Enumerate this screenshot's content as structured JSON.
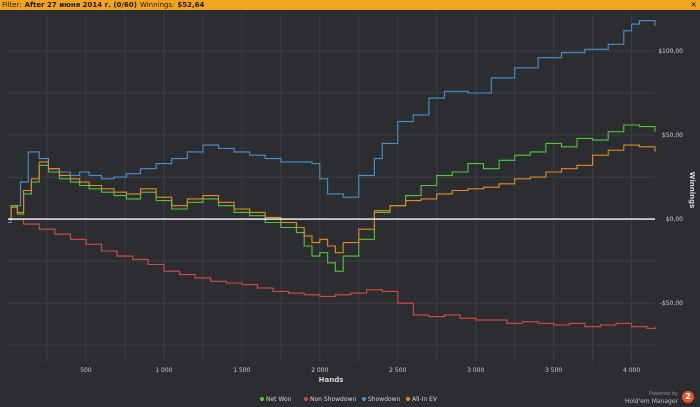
{
  "filter_bar": {
    "filter_label": "Filter:",
    "filter_value": "After 27 июня 2014 г. (0/60)",
    "winnings_label": "Winnings:",
    "winnings_value": "$52,64",
    "close_glyph": "×"
  },
  "brand": {
    "powered_by": "Powered by",
    "name": "Hold'em Manager"
  },
  "chart_data": {
    "type": "line",
    "xlabel": "Hands",
    "ylabel": "Winnings",
    "xlim": [
      0,
      4150
    ],
    "ylim": [
      -85,
      122
    ],
    "x_ticks": [
      500,
      1000,
      1500,
      2000,
      2500,
      3000,
      3500,
      4000
    ],
    "x_tick_labels": [
      "500",
      "1 000",
      "1 500",
      "2 000",
      "2 500",
      "3 000",
      "3 500",
      "4 000"
    ],
    "y_ticks": [
      100,
      50,
      0,
      -50
    ],
    "y_tick_labels": [
      "$100,00",
      "$50,00",
      "$0,00",
      "-$50,00"
    ],
    "grid": true,
    "legend_position": "bottom-center",
    "colors": {
      "background": "#2b2d30",
      "grid": "#3c3f43",
      "zero_line": "#ffffff",
      "axis_text": "#d0d0d0"
    },
    "series": [
      {
        "name": "Showdown",
        "color": "#4a8fd0",
        "x": [
          0,
          20,
          80,
          130,
          200,
          260,
          330,
          400,
          460,
          520,
          600,
          680,
          760,
          850,
          950,
          1050,
          1150,
          1250,
          1350,
          1450,
          1550,
          1650,
          1750,
          1850,
          1950,
          2000,
          2050,
          2150,
          2250,
          2350,
          2400,
          2500,
          2600,
          2700,
          2800,
          2950,
          3100,
          3250,
          3400,
          3550,
          3700,
          3850,
          3950,
          4000,
          4050,
          4150
        ],
        "y": [
          -2,
          8,
          22,
          40,
          36,
          30,
          28,
          26,
          28,
          26,
          24,
          25,
          27,
          30,
          33,
          36,
          40,
          44,
          42,
          40,
          38,
          36,
          34,
          34,
          33,
          24,
          15,
          13,
          26,
          36,
          45,
          58,
          62,
          72,
          76,
          75,
          84,
          90,
          96,
          99,
          101,
          104,
          112,
          116,
          118,
          115
        ]
      },
      {
        "name": "Net Won",
        "color": "#4ec83a",
        "x": [
          0,
          20,
          60,
          100,
          150,
          200,
          260,
          330,
          400,
          460,
          520,
          600,
          680,
          760,
          850,
          950,
          1050,
          1150,
          1250,
          1350,
          1450,
          1550,
          1650,
          1750,
          1850,
          1900,
          1950,
          2000,
          2050,
          2100,
          2150,
          2250,
          2350,
          2450,
          2550,
          2650,
          2750,
          2850,
          2950,
          3050,
          3150,
          3250,
          3350,
          3450,
          3550,
          3650,
          3750,
          3850,
          3950,
          4050,
          4150
        ],
        "y": [
          0,
          7,
          3,
          15,
          22,
          32,
          28,
          24,
          22,
          20,
          18,
          16,
          14,
          12,
          16,
          11,
          6,
          10,
          12,
          8,
          4,
          2,
          -2,
          -5,
          -8,
          -16,
          -22,
          -20,
          -26,
          -31,
          -22,
          -12,
          4,
          8,
          14,
          20,
          26,
          28,
          33,
          30,
          35,
          38,
          40,
          45,
          43,
          48,
          47,
          52,
          56,
          55,
          52
        ]
      },
      {
        "name": "All-In EV",
        "color": "#e58a26",
        "x": [
          0,
          20,
          60,
          100,
          150,
          200,
          260,
          330,
          400,
          460,
          520,
          600,
          680,
          760,
          850,
          950,
          1050,
          1150,
          1250,
          1350,
          1450,
          1550,
          1650,
          1750,
          1850,
          1900,
          1950,
          2000,
          2050,
          2100,
          2150,
          2250,
          2350,
          2450,
          2550,
          2650,
          2750,
          2850,
          2950,
          3050,
          3150,
          3250,
          3350,
          3450,
          3550,
          3650,
          3750,
          3850,
          3950,
          4050,
          4150
        ],
        "y": [
          0,
          8,
          4,
          17,
          24,
          34,
          30,
          26,
          24,
          22,
          20,
          18,
          16,
          15,
          18,
          13,
          8,
          12,
          14,
          10,
          6,
          4,
          1,
          -2,
          -5,
          -10,
          -14,
          -12,
          -16,
          -20,
          -14,
          -6,
          5,
          8,
          11,
          12,
          15,
          17,
          18,
          19,
          21,
          24,
          25,
          28,
          30,
          32,
          38,
          41,
          44,
          43,
          40
        ]
      },
      {
        "name": "Non Showdown",
        "color": "#d84a4a",
        "x": [
          0,
          100,
          200,
          300,
          400,
          500,
          600,
          700,
          800,
          900,
          1000,
          1100,
          1200,
          1300,
          1400,
          1500,
          1600,
          1700,
          1800,
          1900,
          2000,
          2100,
          2200,
          2300,
          2400,
          2500,
          2600,
          2700,
          2800,
          2900,
          3000,
          3100,
          3200,
          3300,
          3400,
          3500,
          3600,
          3700,
          3800,
          3900,
          4000,
          4100,
          4150
        ],
        "y": [
          0,
          -3,
          -6,
          -9,
          -12,
          -15,
          -19,
          -22,
          -24,
          -27,
          -31,
          -33,
          -35,
          -37,
          -38,
          -39,
          -41,
          -43,
          -44,
          -45,
          -46,
          -45,
          -44,
          -42,
          -43,
          -50,
          -57,
          -58,
          -57,
          -59,
          -60,
          -60,
          -62,
          -61,
          -62,
          -63,
          -62,
          -64,
          -63,
          -62,
          -64,
          -65,
          -64
        ]
      }
    ],
    "legend_order": [
      "Net Won",
      "Non Showdown",
      "Showdown",
      "All-In EV"
    ]
  }
}
